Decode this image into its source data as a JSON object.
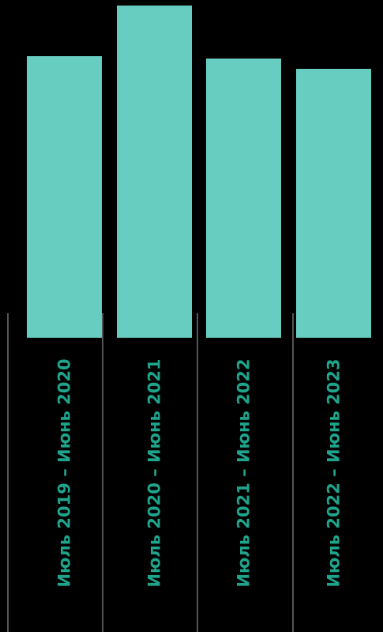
{
  "chart_data": {
    "type": "bar",
    "categories": [
      "Июль 2019 – Июнь 2020",
      "Июль 2020 – Июнь 2021",
      "Июль 2021 – Июнь 2022",
      "Июль 2022 – Июнь 2023"
    ],
    "values": [
      356,
      420,
      353,
      340
    ],
    "ylim": [
      0,
      420
    ],
    "colors": {
      "bar": "#66CDC0",
      "label": "#1FA58C",
      "divider": "#555555",
      "background": "#000000"
    }
  }
}
